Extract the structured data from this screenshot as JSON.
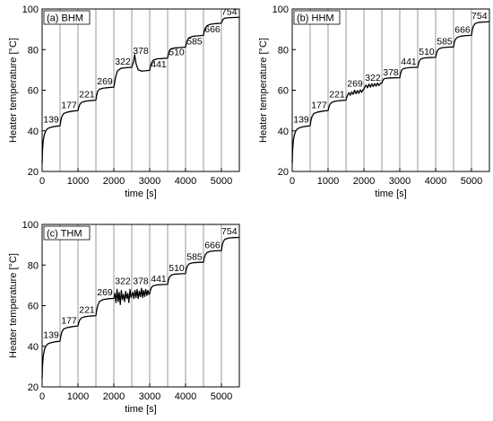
{
  "chart_data": [
    {
      "type": "line",
      "panel_label": "(a) BHM",
      "xlabel": "time [s]",
      "ylabel": "Heater temperature [°C]",
      "xlim": [
        0,
        5500
      ],
      "ylim": [
        20,
        100
      ],
      "xticks": [
        0,
        1000,
        2000,
        3000,
        4000,
        5000
      ],
      "yticks": [
        20,
        40,
        60,
        80,
        100
      ],
      "vlines": [
        500,
        1000,
        1500,
        2000,
        2500,
        3000,
        3500,
        4000,
        4500,
        5000
      ],
      "x": [
        0,
        10,
        30,
        60,
        100,
        150,
        200,
        300,
        400,
        500,
        520,
        550,
        600,
        700,
        850,
        1000,
        1020,
        1050,
        1100,
        1200,
        1350,
        1500,
        1520,
        1550,
        1600,
        1700,
        1850,
        2000,
        2020,
        2050,
        2100,
        2200,
        2350,
        2500,
        2520,
        2550,
        2580,
        2620,
        2680,
        2780,
        2900,
        3000,
        3020,
        3050,
        3100,
        3200,
        3350,
        3500,
        3520,
        3550,
        3600,
        3700,
        3850,
        4000,
        4020,
        4050,
        4100,
        4200,
        4350,
        4500,
        4520,
        4550,
        4600,
        4700,
        4850,
        5000,
        5020,
        5050,
        5100,
        5200,
        5350,
        5500
      ],
      "y": [
        24,
        30,
        35,
        38,
        40,
        41,
        41.5,
        42,
        42.3,
        42.5,
        45,
        47,
        48.5,
        49.2,
        49.7,
        50,
        51.5,
        53,
        54,
        54.6,
        54.9,
        55.1,
        57.5,
        59.5,
        60.5,
        61,
        61.3,
        61.5,
        63.5,
        66.5,
        69.5,
        70.8,
        71.1,
        71.3,
        72.5,
        74,
        77.5,
        73,
        70,
        69.4,
        69.6,
        69.8,
        71.5,
        73.5,
        74.8,
        75.4,
        75.6,
        75.8,
        77.5,
        79.5,
        80.4,
        80.8,
        81,
        81.2,
        83,
        84.5,
        85.8,
        86.5,
        86.8,
        87,
        89,
        90.5,
        91.8,
        92.5,
        92.8,
        93,
        94,
        95,
        95.5,
        95.7,
        95.8,
        95.9
      ],
      "annotations": [
        {
          "text": "139",
          "x": 250,
          "y": 44
        },
        {
          "text": "177",
          "x": 750,
          "y": 51.2
        },
        {
          "text": "221",
          "x": 1250,
          "y": 56.5
        },
        {
          "text": "269",
          "x": 1750,
          "y": 62.8
        },
        {
          "text": "322",
          "x": 2250,
          "y": 72.6
        },
        {
          "text": "378",
          "x": 2750,
          "y": 78
        },
        {
          "text": "441",
          "x": 3250,
          "y": 71.2
        },
        {
          "text": "510",
          "x": 3750,
          "y": 77.2
        },
        {
          "text": "585",
          "x": 4250,
          "y": 82.5
        },
        {
          "text": "666",
          "x": 4750,
          "y": 88.5
        },
        {
          "text": "754",
          "x": 5220,
          "y": 97.2
        }
      ]
    },
    {
      "type": "line",
      "panel_label": "(b) HHM",
      "xlabel": "time [s]",
      "ylabel": "Heater temperature [°C]",
      "xlim": [
        0,
        5500
      ],
      "ylim": [
        20,
        100
      ],
      "xticks": [
        0,
        1000,
        2000,
        3000,
        4000,
        5000
      ],
      "yticks": [
        20,
        40,
        60,
        80,
        100
      ],
      "vlines": [
        500,
        1000,
        1500,
        2000,
        2500,
        3000,
        3500,
        4000,
        4500,
        5000
      ],
      "x": [
        0,
        10,
        30,
        60,
        100,
        150,
        200,
        300,
        400,
        500,
        520,
        550,
        600,
        700,
        850,
        1000,
        1020,
        1050,
        1100,
        1200,
        1350,
        1500,
        1520,
        1550,
        1580,
        1620,
        1660,
        1700,
        1740,
        1780,
        1820,
        1860,
        1900,
        1940,
        1980,
        2000,
        2020,
        2060,
        2100,
        2140,
        2180,
        2220,
        2260,
        2300,
        2340,
        2380,
        2420,
        2460,
        2500,
        2520,
        2550,
        2600,
        2700,
        2850,
        3000,
        3020,
        3050,
        3100,
        3200,
        3350,
        3500,
        3520,
        3550,
        3600,
        3700,
        3850,
        4000,
        4020,
        4050,
        4100,
        4200,
        4350,
        4500,
        4520,
        4550,
        4600,
        4700,
        4850,
        5000,
        5020,
        5050,
        5100,
        5200,
        5350,
        5500
      ],
      "y": [
        24,
        30,
        35,
        38,
        40,
        41,
        41.5,
        42,
        42.3,
        42.5,
        45,
        47,
        48.5,
        49.2,
        49.7,
        50,
        51.5,
        53,
        54,
        54.6,
        54.9,
        55.1,
        56.5,
        57.8,
        58.8,
        57.5,
        59.2,
        58,
        60,
        58.3,
        59.8,
        58.5,
        60.2,
        59,
        60.4,
        60.5,
        61.5,
        62.5,
        61.2,
        63,
        61.5,
        63.2,
        61.8,
        63.3,
        62,
        63.5,
        62.3,
        63.4,
        63.5,
        64.5,
        65.5,
        65.8,
        66,
        66.1,
        66.2,
        68,
        69.8,
        70.6,
        71,
        71.2,
        71.3,
        73,
        74.5,
        75.5,
        75.9,
        76.1,
        76.2,
        78,
        79.5,
        80.5,
        81,
        81.2,
        81.3,
        83.5,
        85,
        86,
        86.6,
        86.9,
        87,
        89.5,
        91.5,
        92.8,
        93.4,
        93.6,
        93.7
      ],
      "annotations": [
        {
          "text": "139",
          "x": 250,
          "y": 44
        },
        {
          "text": "177",
          "x": 750,
          "y": 51.2
        },
        {
          "text": "221",
          "x": 1250,
          "y": 56.5
        },
        {
          "text": "269",
          "x": 1750,
          "y": 61.7
        },
        {
          "text": "322",
          "x": 2250,
          "y": 64.6
        },
        {
          "text": "378",
          "x": 2750,
          "y": 67.4
        },
        {
          "text": "441",
          "x": 3250,
          "y": 72.6
        },
        {
          "text": "510",
          "x": 3750,
          "y": 77.5
        },
        {
          "text": "585",
          "x": 4250,
          "y": 82.6
        },
        {
          "text": "666",
          "x": 4750,
          "y": 88.3
        },
        {
          "text": "754",
          "x": 5220,
          "y": 95.2
        }
      ]
    },
    {
      "type": "line",
      "panel_label": "(c) THM",
      "xlabel": "time [s]",
      "ylabel": "Heater temperature [°C]",
      "xlim": [
        0,
        5500
      ],
      "ylim": [
        20,
        100
      ],
      "xticks": [
        0,
        1000,
        2000,
        3000,
        4000,
        5000
      ],
      "yticks": [
        20,
        40,
        60,
        80,
        100
      ],
      "vlines": [
        500,
        1000,
        1500,
        2000,
        2500,
        3000,
        3500,
        4000,
        4500,
        5000
      ],
      "x": [
        0,
        10,
        30,
        60,
        100,
        150,
        200,
        300,
        400,
        500,
        520,
        550,
        600,
        700,
        850,
        1000,
        1020,
        1050,
        1100,
        1200,
        1350,
        1500,
        1520,
        1550,
        1600,
        1700,
        1850,
        2000,
        2030,
        2060,
        2090,
        2120,
        2150,
        2180,
        2210,
        2240,
        2270,
        2300,
        2330,
        2360,
        2390,
        2420,
        2450,
        2480,
        2500,
        2530,
        2560,
        2590,
        2620,
        2650,
        2680,
        2710,
        2740,
        2770,
        2800,
        2830,
        2860,
        2890,
        2920,
        2950,
        2980,
        3000,
        3020,
        3050,
        3100,
        3200,
        3350,
        3500,
        3520,
        3550,
        3600,
        3700,
        3850,
        4000,
        4020,
        4050,
        4100,
        4200,
        4350,
        4500,
        4520,
        4550,
        4600,
        4700,
        4850,
        5000,
        5020,
        5050,
        5100,
        5200,
        5350,
        5500
      ],
      "y": [
        24,
        30,
        35,
        38,
        40,
        41,
        41.5,
        42,
        42.3,
        42.5,
        45,
        47,
        48.5,
        49.2,
        49.7,
        50,
        51.5,
        53,
        54,
        54.6,
        54.9,
        55.1,
        57.5,
        60,
        62,
        63,
        63.4,
        63.6,
        66,
        61.5,
        68,
        62,
        66.5,
        60.5,
        67.5,
        63,
        65.5,
        62,
        67,
        63.5,
        66,
        61.5,
        68,
        64,
        65,
        66.5,
        63.5,
        67.5,
        64,
        68,
        63.5,
        67,
        64.5,
        68.5,
        64,
        67.5,
        64.5,
        68,
        65,
        67.5,
        65.5,
        66,
        67.5,
        69,
        69.8,
        70.2,
        70.4,
        70.5,
        72.5,
        74,
        75,
        75.5,
        75.7,
        75.8,
        78,
        79.5,
        80.6,
        81.1,
        81.3,
        81.4,
        83.5,
        85,
        86.2,
        86.8,
        87,
        87.1,
        89.5,
        91.5,
        92.7,
        93.3,
        93.5,
        93.6
      ],
      "annotations": [
        {
          "text": "139",
          "x": 250,
          "y": 44
        },
        {
          "text": "177",
          "x": 750,
          "y": 51.2
        },
        {
          "text": "221",
          "x": 1250,
          "y": 56.5
        },
        {
          "text": "269",
          "x": 1750,
          "y": 65
        },
        {
          "text": "322",
          "x": 2250,
          "y": 70.5
        },
        {
          "text": "378",
          "x": 2750,
          "y": 70.5
        },
        {
          "text": "441",
          "x": 3250,
          "y": 71.8
        },
        {
          "text": "510",
          "x": 3750,
          "y": 77
        },
        {
          "text": "585",
          "x": 4250,
          "y": 82.6
        },
        {
          "text": "666",
          "x": 4750,
          "y": 88.3
        },
        {
          "text": "754",
          "x": 5220,
          "y": 95.2
        }
      ]
    }
  ]
}
